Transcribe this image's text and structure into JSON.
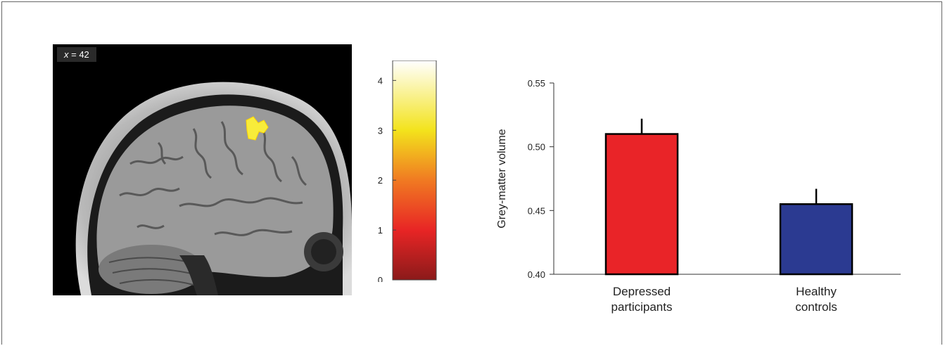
{
  "slice_label": {
    "axis": "x",
    "rest": " = 42"
  },
  "colorbar": {
    "min": 0,
    "max": 4.4,
    "ticks": [
      "0",
      "1",
      "2",
      "3",
      "4"
    ],
    "tick_values": [
      0,
      1,
      2,
      3,
      4
    ],
    "stops": [
      {
        "value": 0.0,
        "color": "#8b1a1a"
      },
      {
        "value": 1.0,
        "color": "#e82525"
      },
      {
        "value": 2.0,
        "color": "#f07a22"
      },
      {
        "value": 3.0,
        "color": "#f3e31c"
      },
      {
        "value": 4.4,
        "color": "#ffffff"
      }
    ]
  },
  "chart_data": {
    "type": "bar",
    "categories": [
      [
        "Depressed",
        "participants"
      ],
      [
        "Healthy",
        "controls"
      ]
    ],
    "values": [
      0.51,
      0.455
    ],
    "errors": [
      0.012,
      0.012
    ],
    "colors": [
      "#e92428",
      "#2b3a91"
    ],
    "ylabel": "Grey-matter volume",
    "xlabel": "",
    "ylim": [
      0.4,
      0.55
    ],
    "yticks": [
      0.4,
      0.45,
      0.5,
      0.55
    ],
    "ytick_labels": [
      "0.40",
      "0.45",
      "0.50",
      "0.55"
    ],
    "grid": false
  }
}
